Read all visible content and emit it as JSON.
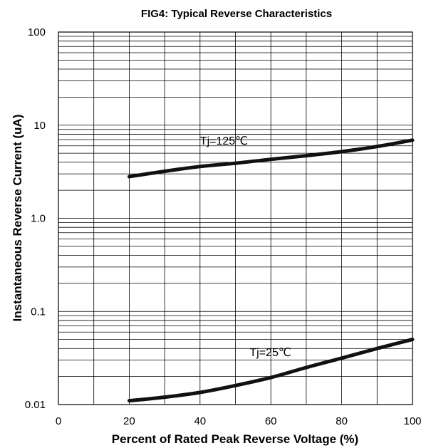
{
  "chart_data": {
    "type": "line",
    "title": "FIG4:  Typical Reverse Characteristics",
    "xlabel": "Percent of Rated Peak Reverse Voltage (%)",
    "ylabel": "Instantaneous Reverse Current (uA)",
    "xlim": [
      0,
      100
    ],
    "ylim": [
      0.01,
      100
    ],
    "yscale": "log",
    "grid": true,
    "x_ticks": [
      0,
      20,
      40,
      60,
      80,
      100
    ],
    "x_tick_labels": [
      "0",
      "20",
      "40",
      "60",
      "80",
      "100"
    ],
    "y_ticks": [
      0.01,
      0.1,
      1,
      10,
      100
    ],
    "y_tick_labels": [
      "0.01",
      "0.1",
      "1.0",
      "10",
      "100"
    ],
    "series": [
      {
        "name": "Tj=125℃",
        "x": [
          20,
          30,
          40,
          50,
          60,
          70,
          80,
          90,
          100
        ],
        "y": [
          2.8,
          3.2,
          3.6,
          3.9,
          4.3,
          4.7,
          5.2,
          5.9,
          6.9
        ]
      },
      {
        "name": "Tj=25℃",
        "x": [
          20,
          30,
          40,
          50,
          60,
          70,
          80,
          90,
          100
        ],
        "y": [
          0.011,
          0.012,
          0.0135,
          0.016,
          0.0195,
          0.025,
          0.0315,
          0.04,
          0.05
        ]
      }
    ]
  }
}
